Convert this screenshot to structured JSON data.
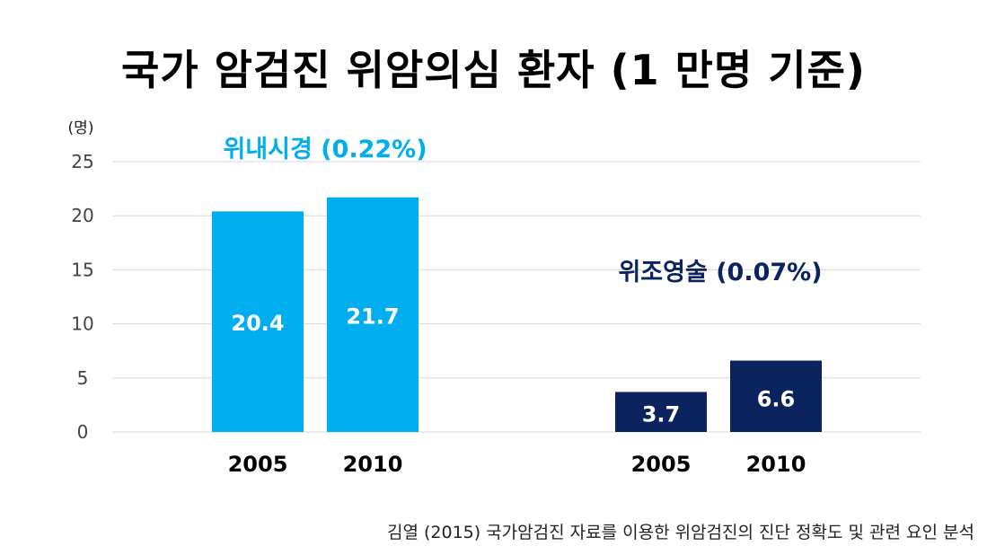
{
  "title": "국가 암검진 위암의심 환자 (1 만명 기준)",
  "source": "김열 (2015) 국가암검진 자료를 이용한 위암검진의 진단 정확도 및 관련 요인 분석",
  "colors": {
    "series1": "#00AEEF",
    "series2": "#0B2460",
    "grid": "#D9D9D9",
    "axis_text": "#444444"
  },
  "chart_data": {
    "type": "bar",
    "yunit": "(명)",
    "ylim": [
      0,
      25
    ],
    "yticks": [
      0,
      5,
      10,
      15,
      20,
      25
    ],
    "grid": true,
    "series": [
      {
        "name": "위내시경 (0.22%)",
        "categories": [
          "2005",
          "2010"
        ],
        "values": [
          20.4,
          21.7
        ],
        "labels": [
          "20.4",
          "21.7"
        ]
      },
      {
        "name": "위조영술 (0.07%)",
        "categories": [
          "2005",
          "2010"
        ],
        "values": [
          3.7,
          6.6
        ],
        "labels": [
          "3.7",
          "6.6"
        ]
      }
    ]
  }
}
